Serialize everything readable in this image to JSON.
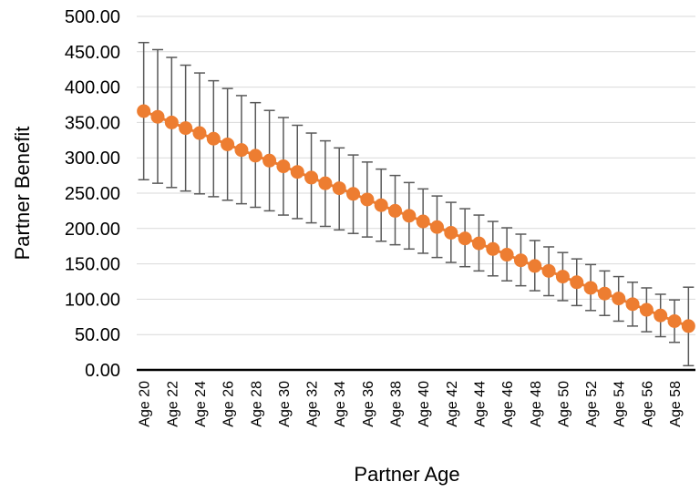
{
  "chart_data": {
    "type": "line",
    "title": "",
    "xlabel": "Partner Age",
    "ylabel": "Partner Benefit",
    "ylim": [
      0,
      500
    ],
    "y_tick_values": [
      0,
      50,
      100,
      150,
      200,
      250,
      300,
      350,
      400,
      450,
      500
    ],
    "y_tick_labels": [
      "0.00",
      "50.00",
      "100.00",
      "150.00",
      "200.00",
      "250.00",
      "300.00",
      "350.00",
      "400.00",
      "450.00",
      "500.00"
    ],
    "x_tick_labels": [
      "Age 20",
      "Age 22",
      "Age 24",
      "Age 26",
      "Age 28",
      "Age 30",
      "Age 32",
      "Age 34",
      "Age 36",
      "Age 38",
      "Age 40",
      "Age 42",
      "Age 44",
      "Age 46",
      "Age 48",
      "Age 50",
      "Age 52",
      "Age 54",
      "Age 56",
      "Age 58"
    ],
    "grid": true,
    "legend": "none",
    "series_color": "#ED7D31",
    "error_bar_color": "#595959",
    "series": [
      {
        "x": [
          20,
          21,
          22,
          23,
          24,
          25,
          26,
          27,
          28,
          29,
          30,
          31,
          32,
          33,
          34,
          35,
          36,
          37,
          38,
          39,
          40,
          41,
          42,
          43,
          44,
          45,
          46,
          47,
          48,
          49,
          50,
          51,
          52,
          53,
          54,
          55,
          56,
          57,
          58,
          59
        ],
        "values": [
          366,
          358,
          350,
          342,
          335,
          327,
          319,
          311,
          303,
          296,
          288,
          280,
          272,
          264,
          257,
          249,
          241,
          233,
          225,
          218,
          210,
          202,
          194,
          186,
          179,
          171,
          163,
          155,
          147,
          140,
          132,
          124,
          116,
          108,
          101,
          93,
          85,
          77,
          69,
          62
        ],
        "error_high": [
          463,
          453,
          442,
          431,
          420,
          409,
          398,
          388,
          378,
          367,
          357,
          346,
          335,
          324,
          314,
          304,
          294,
          284,
          275,
          265,
          256,
          246,
          237,
          228,
          219,
          210,
          201,
          192,
          183,
          174,
          166,
          157,
          149,
          140,
          132,
          124,
          116,
          107,
          99,
          117
        ],
        "error_low": [
          269,
          264,
          258,
          253,
          249,
          245,
          240,
          235,
          230,
          225,
          219,
          214,
          208,
          203,
          198,
          193,
          188,
          182,
          177,
          171,
          165,
          159,
          152,
          146,
          140,
          133,
          126,
          119,
          112,
          105,
          98,
          91,
          84,
          77,
          69,
          62,
          54,
          47,
          39,
          6
        ]
      }
    ]
  }
}
